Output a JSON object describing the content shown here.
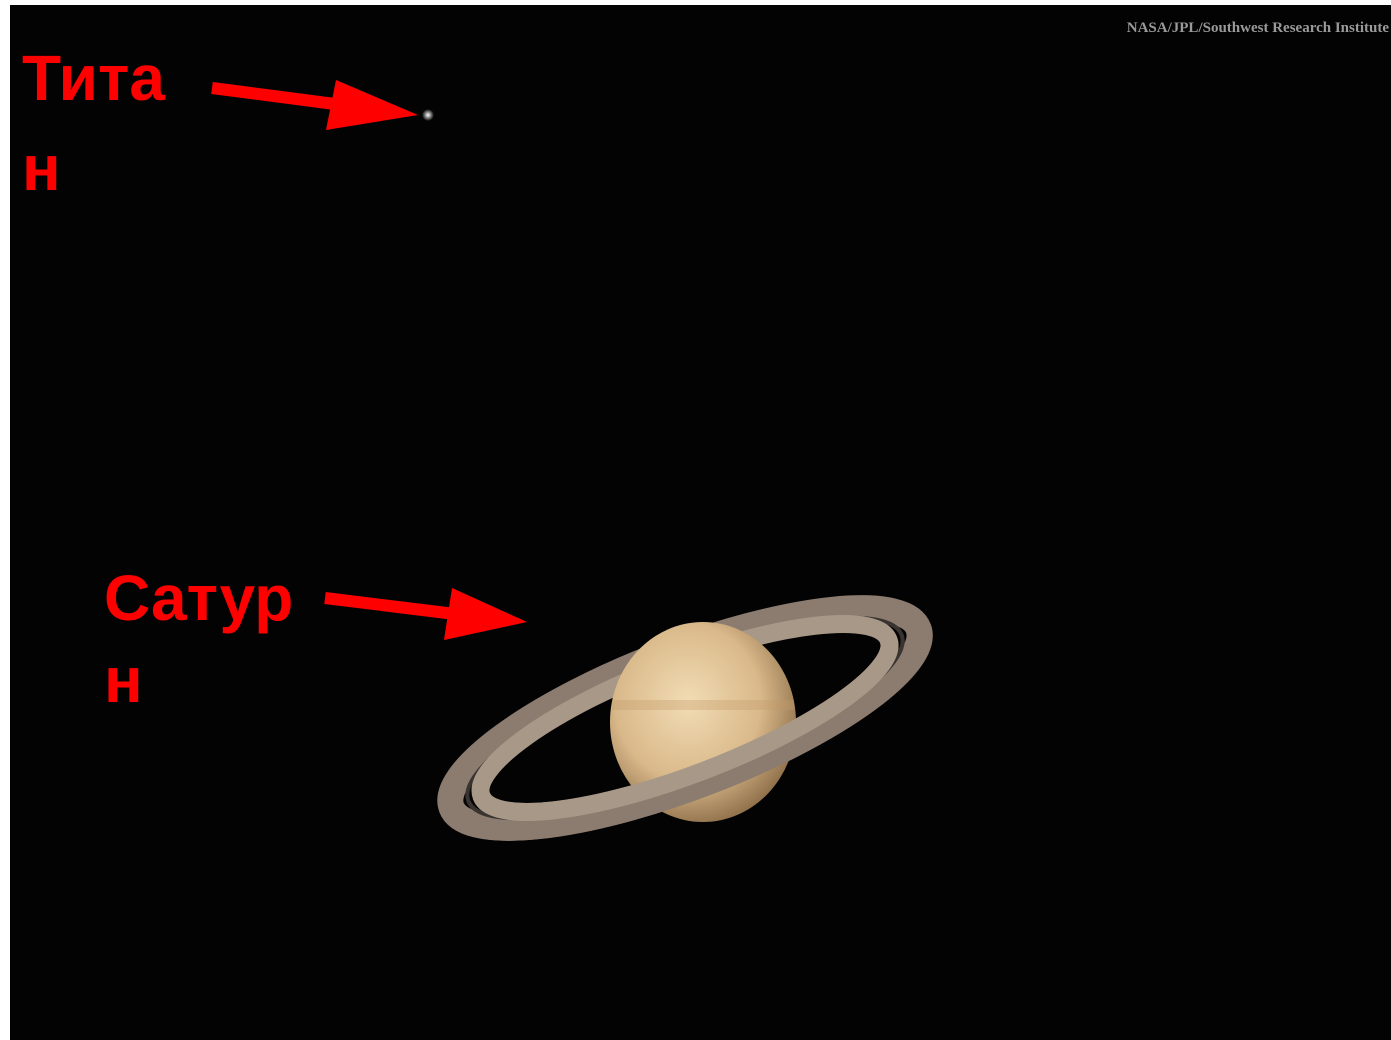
{
  "credit": "NASA/JPL/Southwest Research Institute",
  "labels": {
    "titan": [
      "Тита",
      "н"
    ],
    "saturn": [
      "Сатур",
      "н"
    ]
  }
}
